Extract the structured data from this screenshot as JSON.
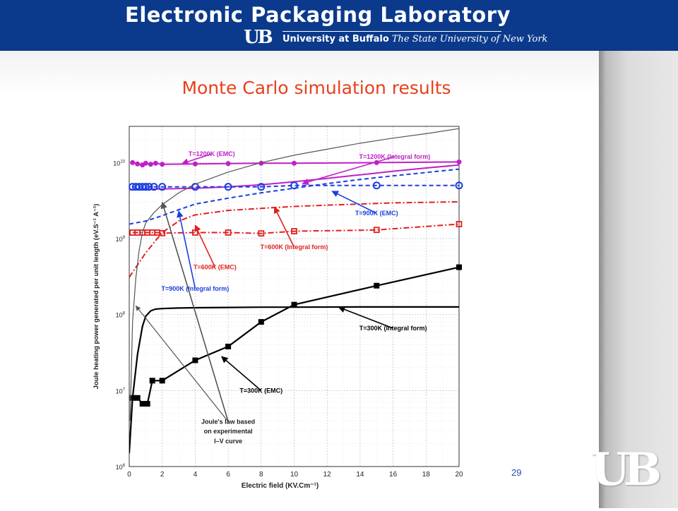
{
  "header": {
    "lab_name": "Electronic Packaging Laboratory",
    "logo_text": "UB",
    "university": "University at Buffalo",
    "suny": "The State University of New York"
  },
  "slide": {
    "title": "Monte Carlo simulation results",
    "page_number": "29"
  },
  "colors": {
    "header_bg": "#0b3a8c",
    "title": "#e8401c",
    "t1200": "#c020c8",
    "t900": "#1a3fe0",
    "t600": "#e02020",
    "t300": "#000000",
    "joule": "#555555"
  },
  "chart_data": {
    "type": "line",
    "xlabel": "Electric field (KV.Cm⁻¹)",
    "ylabel": "Joule heating power generated per unit length (eV.S⁻¹ A⁻¹)",
    "xlim": [
      0,
      20
    ],
    "ylim": [
      1000000.0,
      30000000000.0
    ],
    "y_scale": "log",
    "grid": true,
    "x_ticks": [
      0,
      2,
      4,
      6,
      8,
      10,
      12,
      14,
      16,
      18,
      20
    ],
    "x_tick_labels": [
      "0",
      "2",
      "4",
      "6",
      "8",
      "10",
      "12",
      "14",
      "16",
      "18",
      "20"
    ],
    "y_ticks": [
      {
        "value": 1000000.0,
        "base": "10",
        "exp": "6"
      },
      {
        "value": 10000000.0,
        "base": "10",
        "exp": "7"
      },
      {
        "value": 100000000.0,
        "base": "10",
        "exp": "8"
      },
      {
        "value": 1000000000.0,
        "base": "10",
        "exp": "9"
      },
      {
        "value": 10000000000.0,
        "base": "10",
        "exp": "10"
      }
    ],
    "series": [
      {
        "label": "T=1200K (EMC)",
        "key": "t1200",
        "style": "line-marker",
        "marker": "circle-filled",
        "x": [
          0.2,
          0.5,
          0.8,
          1,
          1.3,
          1.6,
          2,
          4,
          6,
          8,
          10,
          15,
          20
        ],
        "y": [
          10000000000.0,
          9600000000.0,
          9300000000.0,
          9800000000.0,
          9500000000.0,
          9800000000.0,
          9500000000.0,
          9600000000.0,
          9700000000.0,
          9800000000.0,
          9800000000.0,
          10000000000.0,
          10200000000.0
        ]
      },
      {
        "label": "T=1200K (Integral form)",
        "key": "t1200",
        "style": "solid",
        "x": [
          0,
          2,
          4,
          6,
          8,
          10,
          12,
          14,
          16,
          18,
          20
        ],
        "y": [
          4400000000.0,
          4500000000.0,
          4600000000.0,
          4800000000.0,
          5100000000.0,
          5600000000.0,
          6200000000.0,
          6900000000.0,
          7700000000.0,
          8500000000.0,
          9300000000.0
        ]
      },
      {
        "label": "T=900K (EMC)",
        "key": "t900",
        "style": "dashed-marker",
        "marker": "circle-open",
        "x": [
          0.2,
          0.4,
          0.6,
          0.8,
          1,
          1.2,
          1.5,
          2,
          4,
          6,
          8,
          10,
          15,
          20
        ],
        "y": [
          4800000000.0,
          4800000000.0,
          4800000000.0,
          4800000000.0,
          4800000000.0,
          4800000000.0,
          4800000000.0,
          4800000000.0,
          4800000000.0,
          4800000000.0,
          4800000000.0,
          5000000000.0,
          5000000000.0,
          5000000000.0
        ]
      },
      {
        "label": "T=900K (Integral form)",
        "key": "t900",
        "style": "dashed",
        "x": [
          0,
          1,
          2,
          3,
          4,
          6,
          8,
          10,
          12,
          14,
          16,
          18,
          20
        ],
        "y": [
          1550000000.0,
          1700000000.0,
          2000000000.0,
          2400000000.0,
          2850000000.0,
          3400000000.0,
          4000000000.0,
          4600000000.0,
          5300000000.0,
          6000000000.0,
          6700000000.0,
          7400000000.0,
          8200000000.0
        ]
      },
      {
        "label": "T=600K (EMC)",
        "key": "t600",
        "style": "dashdot-marker",
        "marker": "square-open",
        "x": [
          0.2,
          0.5,
          0.8,
          1.1,
          1.4,
          1.7,
          2,
          4,
          6,
          8,
          10,
          15,
          20
        ],
        "y": [
          1200000000.0,
          1200000000.0,
          1200000000.0,
          1200000000.0,
          1200000000.0,
          1200000000.0,
          1180000000.0,
          1200000000.0,
          1200000000.0,
          1170000000.0,
          1250000000.0,
          1300000000.0,
          1550000000.0
        ]
      },
      {
        "label": "T=600K (Integral form)",
        "key": "t600",
        "style": "dashdot",
        "x": [
          0,
          1,
          2,
          3,
          4,
          6,
          8,
          10,
          12,
          14,
          16,
          18,
          20
        ],
        "y": [
          310000000.0,
          650000000.0,
          1200000000.0,
          1700000000.0,
          2050000000.0,
          2350000000.0,
          2500000000.0,
          2650000000.0,
          2750000000.0,
          2850000000.0,
          2950000000.0,
          3000000000.0,
          3050000000.0
        ]
      },
      {
        "label": "T=300K (EMC)",
        "key": "t300",
        "style": "line-marker",
        "marker": "square-filled",
        "x": [
          0.2,
          0.5,
          0.8,
          1.1,
          1.4,
          2,
          4,
          6,
          8,
          10,
          15,
          20
        ],
        "y": [
          8000000.0,
          8000000.0,
          6700000.0,
          6700000.0,
          13500000.0,
          13500000.0,
          25000000.0,
          38000000.0,
          80000000.0,
          135000000.0,
          240000000.0,
          420000000.0
        ]
      },
      {
        "label": "T=300K (Integral form)",
        "key": "t300",
        "style": "solid",
        "x": [
          0,
          0.2,
          0.5,
          0.8,
          1,
          1.3,
          1.6,
          2,
          3,
          4,
          6,
          8,
          10,
          14,
          18,
          20
        ],
        "y": [
          1500000.0,
          8000000.0,
          30000000.0,
          70000000.0,
          95000000.0,
          112000000.0,
          118000000.0,
          120000000.0,
          122000000.0,
          123000000.0,
          124000000.0,
          125000000.0,
          125000000.0,
          126000000.0,
          126000000.0,
          126000000.0
        ]
      },
      {
        "label": "Joule's law based on experimental I–V curve",
        "key": "joule",
        "style": "solid",
        "x": [
          0.05,
          0.2,
          0.4,
          0.6,
          0.8,
          1,
          1.5,
          2,
          3,
          4,
          6,
          8,
          10,
          12,
          14,
          16,
          18,
          20
        ],
        "y": [
          4000000.0,
          80000000.0,
          300000000.0,
          700000000.0,
          1200000000.0,
          1600000000.0,
          2200000000.0,
          2800000000.0,
          4000000000.0,
          5200000000.0,
          7500000000.0,
          10000000000.0,
          12500000000.0,
          15000000000.0,
          18000000000.0,
          21000000000.0,
          24000000000.0,
          28000000000.0
        ]
      }
    ],
    "annotations": [
      {
        "text": "T=1200K (EMC)",
        "color_key": "t1200",
        "data_x": 5.0,
        "data_y": 13000000000.0,
        "arrow_to": [
          3.2,
          9700000000.0
        ]
      },
      {
        "text": "T=1200K (Integral form)",
        "color_key": "t1200",
        "data_x": 16.1,
        "data_y": 12000000000.0,
        "arrow_to": [
          10.5,
          5300000000.0
        ]
      },
      {
        "text": "T=900K (EMC)",
        "color_key": "t900",
        "data_x": 15.0,
        "data_y": 2150000000.0,
        "arrow_to": [
          12.3,
          4200000000.0
        ]
      },
      {
        "text": "T=600K (Integral form)",
        "color_key": "t600",
        "data_x": 10.0,
        "data_y": 770000000.0,
        "arrow_to": [
          8.8,
          2600000000.0
        ]
      },
      {
        "text": "T=600K (EMC)",
        "color_key": "t600",
        "data_x": 5.2,
        "data_y": 420000000.0,
        "arrow_to": [
          4.0,
          1500000000.0
        ]
      },
      {
        "text": "T=900K (Integral form)",
        "color_key": "t900",
        "data_x": 4.0,
        "data_y": 220000000.0,
        "arrow_to": [
          3.0,
          2300000000.0
        ]
      },
      {
        "text": "T=300K (Integral form)",
        "color_key": "t300",
        "data_x": 16.0,
        "data_y": 66000000.0,
        "arrow_to": [
          12.7,
          125000000.0
        ]
      },
      {
        "text": "T=300K (EMC)",
        "color_key": "t300",
        "data_x": 8.0,
        "data_y": 10000000.0,
        "arrow_to": [
          5.6,
          28000000.0
        ]
      },
      {
        "text": "Joule's law based",
        "color_key": "joule",
        "data_x": 6.0,
        "data_y": 3900000.0,
        "arrow_to": [
          2.0,
          3000000000.0
        ]
      },
      {
        "text": "on experimental",
        "color_key": "joule",
        "data_x": 6.0,
        "data_y": 2900000.0,
        "arrow_to": null
      },
      {
        "text": "I–V curve",
        "color_key": "joule",
        "data_x": 6.0,
        "data_y": 2150000.0,
        "arrow_to": null
      }
    ],
    "extra_arrows": [
      {
        "color_key": "joule",
        "from": [
          6.0,
          3900000.0
        ],
        "to": [
          0.4,
          130000000.0
        ]
      }
    ]
  }
}
